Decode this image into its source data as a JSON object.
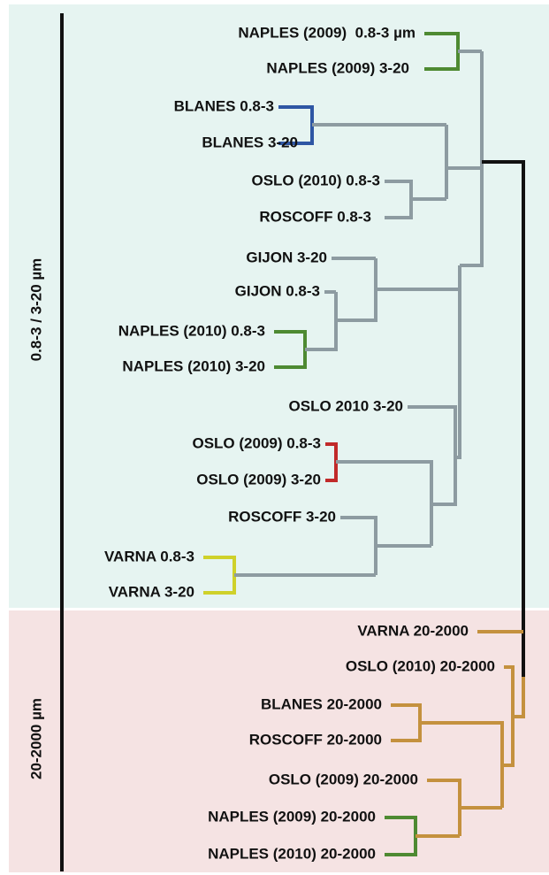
{
  "groups": [
    {
      "label": "0.8-3 / 3-20 µm"
    },
    {
      "label": "20-2000 µm"
    }
  ],
  "leaves": [
    "NAPLES (2009)  0.8-3 µm",
    "NAPLES (2009) 3-20",
    "BLANES 0.8-3",
    "BLANES 3-20",
    "OSLO (2010) 0.8-3",
    "ROSCOFF 0.8-3",
    "GIJON 3-20",
    "GIJON 0.8-3",
    "NAPLES (2010) 0.8-3",
    "NAPLES (2010) 3-20",
    "OSLO 2010 3-20",
    "OSLO (2009) 0.8-3",
    "OSLO (2009) 3-20",
    "ROSCOFF 3-20",
    "VARNA 0.8-3",
    "VARNA 3-20",
    "VARNA 20-2000",
    "OSLO (2010) 20-2000",
    "BLANES 20-2000",
    "ROSCOFF 20-2000",
    "OSLO (2009) 20-2000",
    "NAPLES (2009) 20-2000",
    "NAPLES (2010) 20-2000"
  ]
}
